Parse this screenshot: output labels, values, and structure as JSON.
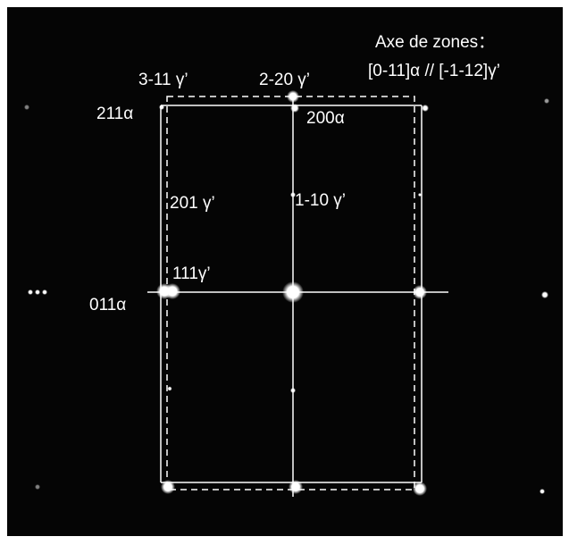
{
  "zone_axis": {
    "title": "Axe de zones：",
    "axis": "[0-11]α // [-1-12]γ’"
  },
  "labels": [
    "3-11 γ’",
    "2-20 γ’",
    "211α",
    "200α",
    "201 γ’",
    "1-10 γ’",
    "111γ’",
    "011α"
  ]
}
